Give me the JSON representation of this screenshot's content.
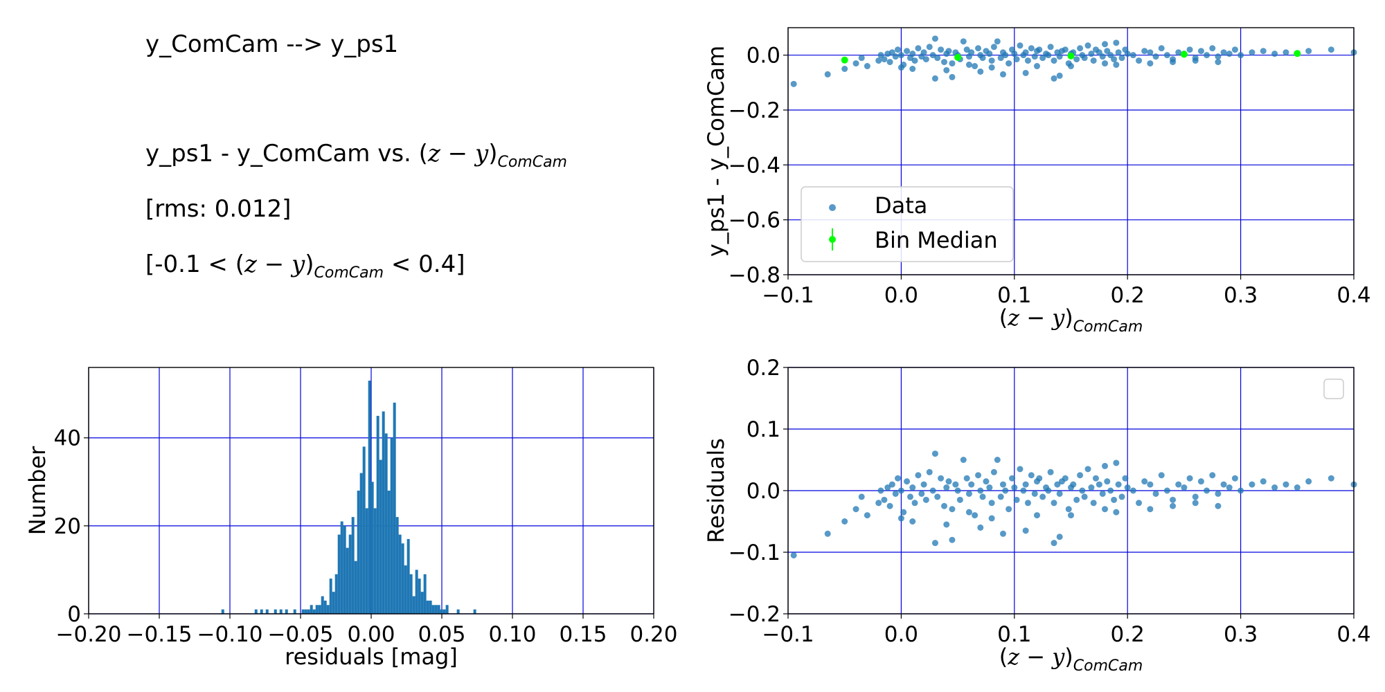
{
  "info": {
    "title": "y_ComCam --> y_ps1",
    "relation_prefix": "y_ps1 - y_ComCam vs. ",
    "rms": "[rms: 0.012]",
    "range_prefix": "[-0.1 < ",
    "range_suffix": " < 0.4]"
  },
  "color_expr": {
    "open": "(",
    "var1": "z",
    "minus": " − ",
    "var2": "y",
    "close": ")",
    "sub": "ComCam"
  },
  "colors": {
    "grid": "#0000dd",
    "data": "#1f77b4",
    "median": "#00ff00",
    "axis": "#000000"
  },
  "chart_data": [
    {
      "id": "scatter_top",
      "type": "scatter",
      "title": "",
      "xlabel": "(z − y)_ComCam",
      "ylabel": "y_ps1 - y_ComCam",
      "xlim": [
        -0.1,
        0.4
      ],
      "ylim": [
        -0.8,
        0.1
      ],
      "xticks": [
        -0.1,
        0.0,
        0.1,
        0.2,
        0.3,
        0.4
      ],
      "xtick_labels": [
        "−0.1",
        "0.0",
        "0.1",
        "0.2",
        "0.3",
        "0.4"
      ],
      "yticks": [
        -0.8,
        -0.6,
        -0.4,
        -0.2,
        0.0
      ],
      "ytick_labels": [
        "−0.8",
        "−0.6",
        "−0.4",
        "−0.2",
        "0.0"
      ],
      "grid": true,
      "legend": {
        "placement": "lower-left",
        "entries": [
          "Data",
          "Bin Median"
        ]
      },
      "series": [
        {
          "name": "Data",
          "x": [
            -0.095,
            -0.065,
            -0.05,
            -0.04,
            -0.035,
            -0.03,
            -0.02,
            -0.018,
            -0.015,
            -0.012,
            -0.01,
            -0.008,
            -0.005,
            -0.003,
            0.0,
            0.002,
            0.005,
            0.008,
            0.01,
            0.012,
            0.015,
            0.018,
            0.02,
            0.022,
            0.025,
            0.028,
            0.03,
            0.032,
            0.035,
            0.038,
            0.04,
            0.042,
            0.045,
            0.048,
            0.05,
            0.052,
            0.055,
            0.058,
            0.06,
            0.062,
            0.065,
            0.068,
            0.07,
            0.072,
            0.075,
            0.078,
            0.08,
            0.082,
            0.085,
            0.088,
            0.09,
            0.092,
            0.095,
            0.098,
            0.1,
            0.102,
            0.105,
            0.108,
            0.11,
            0.112,
            0.115,
            0.118,
            0.12,
            0.122,
            0.125,
            0.128,
            0.13,
            0.132,
            0.135,
            0.138,
            0.14,
            0.142,
            0.145,
            0.148,
            0.15,
            0.152,
            0.155,
            0.158,
            0.16,
            0.162,
            0.165,
            0.168,
            0.17,
            0.172,
            0.175,
            0.178,
            0.18,
            0.182,
            0.185,
            0.188,
            0.19,
            0.192,
            0.195,
            0.198,
            0.2,
            0.205,
            0.21,
            0.215,
            0.22,
            0.225,
            0.23,
            0.235,
            0.24,
            0.245,
            0.25,
            0.255,
            0.26,
            0.265,
            0.27,
            0.275,
            0.28,
            0.285,
            0.29,
            0.295,
            0.3,
            0.31,
            0.32,
            0.33,
            0.34,
            0.35,
            0.36,
            0.38,
            0.4,
            0.03,
            0.045,
            0.07,
            0.09,
            0.11,
            0.135,
            0.14,
            0.0,
            0.06,
            0.12,
            0.18,
            0.24,
            0.01,
            0.04,
            0.08,
            0.15,
            0.19,
            0.22,
            0.26,
            0.28
          ],
          "y": [
            -0.105,
            -0.07,
            -0.05,
            -0.03,
            -0.01,
            -0.04,
            -0.02,
            0.0,
            -0.015,
            0.005,
            -0.025,
            0.01,
            -0.005,
            0.02,
            0.0,
            -0.035,
            0.015,
            -0.01,
            0.005,
            -0.02,
            0.025,
            -0.005,
            0.01,
            -0.015,
            0.03,
            0.0,
            0.06,
            -0.01,
            0.02,
            -0.025,
            0.005,
            0.015,
            -0.03,
            0.01,
            0.0,
            -0.015,
            0.05,
            0.02,
            -0.005,
            0.01,
            -0.04,
            0.025,
            0.0,
            -0.01,
            0.015,
            0.005,
            -0.02,
            0.03,
            0.05,
            -0.01,
            0.01,
            0.0,
            -0.03,
            0.02,
            0.005,
            -0.015,
            0.035,
            0.0,
            0.01,
            -0.02,
            0.025,
            -0.005,
            0.015,
            0.02,
            -0.01,
            0.005,
            0.0,
            0.03,
            -0.02,
            0.01,
            -0.005,
            0.015,
            0.02,
            -0.03,
            0.005,
            0.01,
            -0.015,
            0.025,
            0.0,
            -0.01,
            0.035,
            0.005,
            -0.02,
            0.02,
            0.01,
            -0.005,
            0.04,
            0.015,
            0.0,
            -0.015,
            0.045,
            0.01,
            -0.01,
            0.02,
            0.005,
            0.0,
            -0.02,
            0.015,
            0.01,
            -0.005,
            0.025,
            0.0,
            -0.015,
            0.01,
            0.005,
            0.02,
            -0.01,
            0.015,
            0.0,
            0.025,
            -0.005,
            0.01,
            0.005,
            0.02,
            0.0,
            0.01,
            0.015,
            0.005,
            0.01,
            0.005,
            0.015,
            0.02,
            0.01,
            -0.085,
            -0.08,
            -0.06,
            -0.07,
            -0.065,
            -0.085,
            -0.075,
            -0.045,
            -0.035,
            -0.04,
            -0.03,
            -0.025,
            -0.05,
            -0.055,
            -0.045,
            -0.04,
            -0.035,
            -0.03,
            -0.02,
            -0.025
          ]
        },
        {
          "name": "Bin Median",
          "x": [
            -0.05,
            0.05,
            0.15,
            0.25,
            0.35
          ],
          "y": [
            -0.018,
            -0.008,
            -0.003,
            0.003,
            0.006
          ]
        }
      ]
    },
    {
      "id": "histogram",
      "type": "bar",
      "title": "",
      "xlabel": "residuals [mag]",
      "ylabel": "Number",
      "xlim": [
        -0.2,
        0.2
      ],
      "ylim": [
        0,
        56
      ],
      "xticks": [
        -0.2,
        -0.15,
        -0.1,
        -0.05,
        0.0,
        0.05,
        0.1,
        0.15,
        0.2
      ],
      "xtick_labels": [
        "−0.20",
        "−0.15",
        "−0.10",
        "−0.05",
        "0.00",
        "0.05",
        "0.10",
        "0.15",
        "0.20"
      ],
      "yticks": [
        0,
        20,
        40
      ],
      "ytick_labels": [
        "0",
        "20",
        "40"
      ],
      "grid": true,
      "bin_start": -0.106,
      "bin_width": 0.00196,
      "values": [
        1,
        0,
        0,
        0,
        0,
        0,
        0,
        0,
        0,
        0,
        0,
        0,
        1,
        0,
        1,
        0,
        1,
        0,
        0,
        1,
        0,
        1,
        0,
        1,
        0,
        0,
        1,
        0,
        0,
        1,
        1,
        1,
        2,
        1,
        2,
        2,
        4,
        3,
        2,
        8,
        5,
        9,
        18,
        21,
        20,
        15,
        18,
        22,
        12,
        28,
        32,
        38,
        24,
        53,
        30,
        24,
        45,
        35,
        46,
        41,
        28,
        40,
        48,
        22,
        18,
        16,
        11,
        17,
        9,
        4,
        10,
        8,
        5,
        9,
        3,
        3,
        2,
        2,
        2,
        1,
        1,
        2,
        0,
        0,
        0,
        1,
        0,
        0,
        0,
        0,
        0,
        1
      ]
    },
    {
      "id": "scatter_residuals",
      "type": "scatter",
      "title": "",
      "xlabel": "(z − y)_ComCam",
      "ylabel": "Residuals",
      "xlim": [
        -0.1,
        0.4
      ],
      "ylim": [
        -0.2,
        0.2
      ],
      "xticks": [
        -0.1,
        0.0,
        0.1,
        0.2,
        0.3,
        0.4
      ],
      "xtick_labels": [
        "−0.1",
        "0.0",
        "0.1",
        "0.2",
        "0.3",
        "0.4"
      ],
      "yticks": [
        -0.2,
        -0.1,
        0.0,
        0.1,
        0.2
      ],
      "ytick_labels": [
        "−0.2",
        "−0.1",
        "0.0",
        "0.1",
        "0.2"
      ],
      "grid": true,
      "legend": {
        "placement": "top-right",
        "entries": []
      },
      "series": [
        {
          "name": "Data",
          "x": [
            -0.095,
            -0.065,
            -0.05,
            -0.04,
            -0.035,
            -0.03,
            -0.02,
            -0.018,
            -0.015,
            -0.012,
            -0.01,
            -0.008,
            -0.005,
            -0.003,
            0.0,
            0.002,
            0.005,
            0.008,
            0.01,
            0.012,
            0.015,
            0.018,
            0.02,
            0.022,
            0.025,
            0.028,
            0.03,
            0.032,
            0.035,
            0.038,
            0.04,
            0.042,
            0.045,
            0.048,
            0.05,
            0.052,
            0.055,
            0.058,
            0.06,
            0.062,
            0.065,
            0.068,
            0.07,
            0.072,
            0.075,
            0.078,
            0.08,
            0.082,
            0.085,
            0.088,
            0.09,
            0.092,
            0.095,
            0.098,
            0.1,
            0.102,
            0.105,
            0.108,
            0.11,
            0.112,
            0.115,
            0.118,
            0.12,
            0.122,
            0.125,
            0.128,
            0.13,
            0.132,
            0.135,
            0.138,
            0.14,
            0.142,
            0.145,
            0.148,
            0.15,
            0.152,
            0.155,
            0.158,
            0.16,
            0.162,
            0.165,
            0.168,
            0.17,
            0.172,
            0.175,
            0.178,
            0.18,
            0.182,
            0.185,
            0.188,
            0.19,
            0.192,
            0.195,
            0.198,
            0.2,
            0.205,
            0.21,
            0.215,
            0.22,
            0.225,
            0.23,
            0.235,
            0.24,
            0.245,
            0.25,
            0.255,
            0.26,
            0.265,
            0.27,
            0.275,
            0.28,
            0.285,
            0.29,
            0.295,
            0.3,
            0.31,
            0.32,
            0.33,
            0.34,
            0.35,
            0.36,
            0.38,
            0.4,
            0.03,
            0.045,
            0.07,
            0.09,
            0.11,
            0.135,
            0.14,
            0.0,
            0.06,
            0.12,
            0.18,
            0.24,
            0.01,
            0.04,
            0.08,
            0.15,
            0.19,
            0.22,
            0.26,
            0.28
          ],
          "y": [
            -0.105,
            -0.07,
            -0.05,
            -0.03,
            -0.01,
            -0.04,
            -0.02,
            0.0,
            -0.015,
            0.005,
            -0.025,
            0.01,
            -0.005,
            0.02,
            0.0,
            -0.035,
            0.015,
            -0.01,
            0.005,
            -0.02,
            0.025,
            -0.005,
            0.01,
            -0.015,
            0.03,
            0.0,
            0.06,
            -0.01,
            0.02,
            -0.025,
            0.005,
            0.015,
            -0.03,
            0.01,
            0.0,
            -0.015,
            0.05,
            0.02,
            -0.005,
            0.01,
            -0.04,
            0.025,
            0.0,
            -0.01,
            0.015,
            0.005,
            -0.02,
            0.03,
            0.05,
            -0.01,
            0.01,
            0.0,
            -0.03,
            0.02,
            0.005,
            -0.015,
            0.035,
            0.0,
            0.01,
            -0.02,
            0.025,
            -0.005,
            0.015,
            0.02,
            -0.01,
            0.005,
            0.0,
            0.03,
            -0.02,
            0.01,
            -0.005,
            0.015,
            0.02,
            -0.03,
            0.005,
            0.01,
            -0.015,
            0.025,
            0.0,
            -0.01,
            0.035,
            0.005,
            -0.02,
            0.02,
            0.01,
            -0.005,
            0.04,
            0.015,
            0.0,
            -0.015,
            0.045,
            0.01,
            -0.01,
            0.02,
            0.005,
            0.0,
            -0.02,
            0.015,
            0.01,
            -0.005,
            0.025,
            0.0,
            -0.015,
            0.01,
            0.005,
            0.02,
            -0.01,
            0.015,
            0.0,
            0.025,
            -0.005,
            0.01,
            0.005,
            0.02,
            0.0,
            0.01,
            0.015,
            0.005,
            0.01,
            0.005,
            0.015,
            0.02,
            0.01,
            -0.085,
            -0.08,
            -0.06,
            -0.07,
            -0.065,
            -0.085,
            -0.075,
            -0.045,
            -0.035,
            -0.04,
            -0.03,
            -0.025,
            -0.05,
            -0.055,
            -0.045,
            -0.04,
            -0.035,
            -0.03,
            -0.02,
            -0.025
          ]
        }
      ]
    }
  ]
}
